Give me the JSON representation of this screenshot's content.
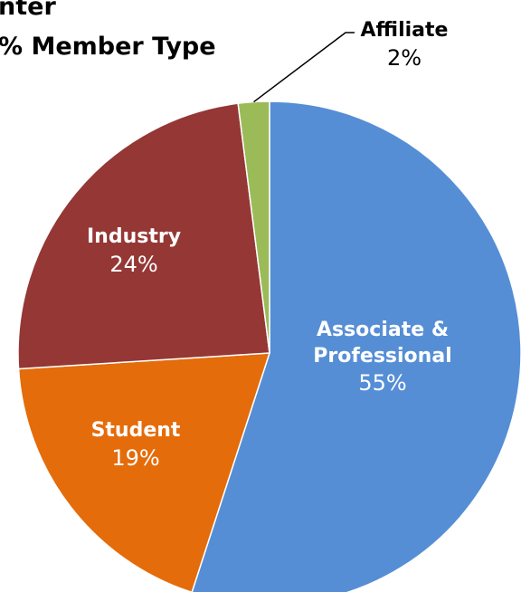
{
  "chart_data": {
    "type": "pie",
    "title": [
      "nter",
      "% Member Type"
    ],
    "categories": [
      "Associate & Professional",
      "Student",
      "Industry",
      "Affiliate"
    ],
    "values": [
      55,
      19,
      24,
      2
    ],
    "value_labels": [
      "55%",
      "19%",
      "24%",
      "2%"
    ],
    "colors": [
      "#558ed5",
      "#e46c0a",
      "#953735",
      "#9bbb59"
    ]
  }
}
